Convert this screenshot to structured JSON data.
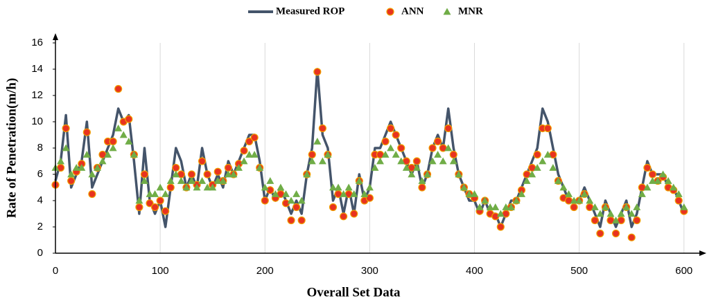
{
  "chart_data": {
    "type": "line-scatter",
    "xlabel": "Overall Set Data",
    "ylabel": "Rate of Penetration(m/h)",
    "x": [
      0,
      5,
      10,
      15,
      20,
      25,
      30,
      35,
      40,
      45,
      50,
      55,
      60,
      65,
      70,
      75,
      80,
      85,
      90,
      95,
      100,
      105,
      110,
      115,
      120,
      125,
      130,
      135,
      140,
      145,
      150,
      155,
      160,
      165,
      170,
      175,
      180,
      185,
      190,
      195,
      200,
      205,
      210,
      215,
      220,
      225,
      230,
      235,
      240,
      245,
      250,
      255,
      260,
      265,
      270,
      275,
      280,
      285,
      290,
      295,
      300,
      305,
      310,
      315,
      320,
      325,
      330,
      335,
      340,
      345,
      350,
      355,
      360,
      365,
      370,
      375,
      380,
      385,
      390,
      395,
      400,
      405,
      410,
      415,
      420,
      425,
      430,
      435,
      440,
      445,
      450,
      455,
      460,
      465,
      470,
      475,
      480,
      485,
      490,
      495,
      500,
      505,
      510,
      515,
      520,
      525,
      530,
      535,
      540,
      545,
      550,
      555,
      560,
      565,
      570,
      575,
      580,
      585,
      590,
      595,
      600
    ],
    "series": [
      {
        "name": "Measured ROP",
        "kind": "line",
        "color": "#44546a",
        "values": [
          5.5,
          7,
          10.5,
          5,
          6,
          7,
          10,
          5,
          6,
          7,
          8,
          9,
          11,
          10,
          10.5,
          7,
          3,
          8,
          4,
          3,
          4,
          2,
          5,
          8,
          7,
          5,
          6,
          5,
          8,
          6,
          5,
          6,
          5,
          7,
          6,
          7,
          8,
          9,
          9,
          7,
          4,
          5,
          4,
          5,
          4,
          3,
          4,
          3,
          6,
          8,
          14,
          9,
          8,
          4,
          5,
          3,
          5,
          3,
          6,
          4,
          5,
          8,
          8,
          9,
          10,
          9,
          8,
          7,
          6,
          7,
          5,
          6,
          8,
          9,
          8,
          11,
          8,
          6,
          5,
          4,
          4,
          3,
          4,
          3,
          3,
          2,
          3,
          4,
          4,
          5,
          6,
          7,
          8,
          11,
          10,
          8,
          6,
          5,
          4,
          4,
          4,
          5,
          4,
          3,
          2,
          4,
          3,
          2,
          3,
          4,
          2,
          3,
          5,
          7,
          6,
          6,
          6,
          5,
          5,
          4,
          3
        ]
      },
      {
        "name": "ANN",
        "kind": "circle",
        "color": "#e8331f",
        "values": [
          5.2,
          6.5,
          9.5,
          5.5,
          6.2,
          6.8,
          9.2,
          4.5,
          6.5,
          7.5,
          8.5,
          8.5,
          12.5,
          10,
          10.2,
          7.5,
          3.5,
          6,
          3.8,
          3.5,
          4,
          3.2,
          5,
          6.5,
          6,
          5,
          6,
          5.2,
          7,
          6,
          5.2,
          6.2,
          5.5,
          6.5,
          6,
          6.8,
          7.8,
          8.5,
          8.8,
          6.5,
          4,
          4.8,
          4.2,
          4.5,
          3.8,
          2.5,
          3.5,
          2.5,
          6,
          7.5,
          13.8,
          9.5,
          7.5,
          3.5,
          4.5,
          2.8,
          4.5,
          3,
          5.5,
          4,
          4.2,
          7.5,
          7.5,
          8.5,
          9.5,
          9,
          8,
          7,
          6.5,
          7,
          5,
          6,
          8,
          8.5,
          8,
          9.5,
          7.5,
          6,
          5,
          4.5,
          4.2,
          3.2,
          4,
          3,
          2.8,
          2,
          3,
          3.5,
          4,
          4.8,
          6,
          6.5,
          7.5,
          9.5,
          9.5,
          7.5,
          5.5,
          4.2,
          4,
          3.5,
          4,
          4.5,
          3.5,
          2.5,
          1.5,
          3.5,
          2.5,
          1.5,
          2.5,
          3.5,
          1.2,
          2.5,
          5,
          6.5,
          6,
          5.5,
          5.8,
          5,
          4.8,
          4,
          3.2
        ]
      },
      {
        "name": "MNR",
        "kind": "triangle",
        "color": "#70ad47",
        "values": [
          6.5,
          7,
          8,
          6,
          6.5,
          6.5,
          7.5,
          6,
          6.5,
          7,
          7.5,
          8,
          9.5,
          9,
          8.5,
          7.5,
          4,
          5.5,
          4.5,
          4.5,
          5,
          4.5,
          5.5,
          6,
          5.5,
          5,
          5.5,
          5,
          5.5,
          5,
          5,
          5.5,
          5.5,
          6,
          6,
          6.5,
          7,
          7.5,
          7.5,
          6.5,
          5,
          5.5,
          4.5,
          5,
          4.5,
          4,
          4.5,
          4,
          6,
          7,
          8.5,
          7,
          7.5,
          5,
          5,
          4.5,
          5,
          4.5,
          5.5,
          4.5,
          5,
          6.5,
          7,
          7.5,
          8,
          7.5,
          7,
          6.5,
          6,
          6.5,
          5.5,
          6,
          7,
          7.5,
          7,
          8,
          7,
          6,
          5,
          4.5,
          4.5,
          3.5,
          4,
          3.5,
          3.5,
          3,
          3.5,
          3.5,
          4,
          4.5,
          5.5,
          6,
          6.5,
          7,
          7.5,
          6.5,
          5.5,
          5,
          4.5,
          4,
          4,
          4.5,
          4,
          3.5,
          3,
          3.5,
          3,
          2.5,
          3,
          3.5,
          3,
          3.5,
          4.5,
          5,
          5.5,
          5.5,
          6,
          5.5,
          5,
          4.5,
          3.5
        ]
      }
    ],
    "xlim": [
      0,
      620
    ],
    "xticks": [
      0,
      100,
      200,
      300,
      400,
      500,
      600
    ],
    "ylim": [
      0,
      16
    ],
    "yticks": [
      0,
      2,
      4,
      6,
      8,
      10,
      12,
      14,
      16
    ],
    "grid": "x",
    "legend": "top"
  }
}
